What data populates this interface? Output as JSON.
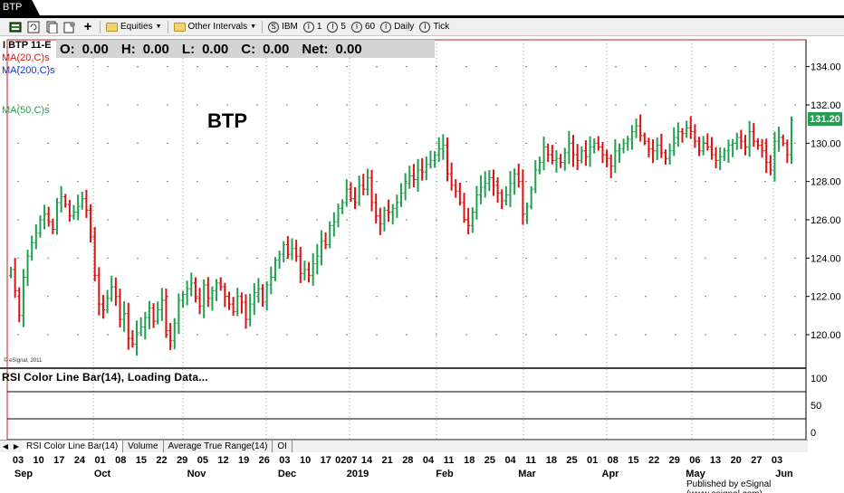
{
  "window": {
    "title": "BTP"
  },
  "toolbar": {
    "items": [
      {
        "kind": "icon",
        "name": "layout-icon"
      },
      {
        "kind": "icon",
        "name": "refresh-icon"
      },
      {
        "kind": "icon",
        "name": "page-icon"
      },
      {
        "kind": "icon",
        "name": "settings-page-icon"
      },
      {
        "kind": "icon",
        "name": "plus-icon"
      },
      {
        "kind": "folder",
        "label": "Equities",
        "dropdown": true
      },
      {
        "kind": "folder",
        "label": "Other Intervals",
        "dropdown": true
      },
      {
        "kind": "circle",
        "glyph": "S",
        "label": "IBM"
      },
      {
        "kind": "circle",
        "glyph": "I",
        "label": "1"
      },
      {
        "kind": "circle",
        "glyph": "I",
        "label": "5"
      },
      {
        "kind": "circle",
        "glyph": "I",
        "label": "60"
      },
      {
        "kind": "circle",
        "glyph": "I",
        "label": "Daily"
      },
      {
        "kind": "circle",
        "glyph": "I",
        "label": "Tick"
      }
    ]
  },
  "chart": {
    "symbol_label": "I BTP 11-E",
    "ohlc": {
      "o_label": "O:",
      "o": "0.00",
      "h_label": "H:",
      "h": "0.00",
      "l_label": "L:",
      "l": "0.00",
      "c_label": "C:",
      "c": "0.00",
      "net_label": "Net:",
      "net": "0.00"
    },
    "studies": [
      {
        "label": "MA(20,C)s",
        "color": "#e01010"
      },
      {
        "label": "MA(200,C)s",
        "color": "#1030e0"
      },
      {
        "label": "MA(50,C)s",
        "color": "#20a050"
      }
    ],
    "title": "BTP",
    "watermark": "© eSignal, 2011",
    "last_price": "131.20",
    "rsi_label": "RSI Color Line Bar(14), Loading Data..."
  },
  "chart_data": {
    "type": "ohlc-bar",
    "title": "BTP",
    "y_ticks": [
      "134.00",
      "132.00",
      "130.00",
      "128.00",
      "126.00",
      "124.00",
      "122.00",
      "120.00"
    ],
    "ylim": [
      118.3,
      135.4
    ],
    "rsi_ticks": [
      "100",
      "50",
      "0"
    ],
    "x_day_ticks": [
      "03",
      "10",
      "17",
      "24",
      "01",
      "08",
      "15",
      "22",
      "29",
      "05",
      "12",
      "19",
      "26",
      "03",
      "10",
      "17",
      "0207",
      "14",
      "21",
      "28",
      "04",
      "11",
      "18",
      "25",
      "04",
      "11",
      "18",
      "25",
      "01",
      "08",
      "15",
      "22",
      "29",
      "06",
      "13",
      "20",
      "27",
      "03"
    ],
    "x_month_labels": [
      "Sep",
      "Oct",
      "Nov",
      "Dec",
      "2019",
      "Feb",
      "Mar",
      "Apr",
      "May",
      "Jun"
    ],
    "up_color": "#20a050",
    "down_color": "#e01010",
    "closes": [
      123.4,
      122.3,
      121.0,
      123.0,
      124.1,
      124.8,
      125.3,
      126.0,
      126.3,
      125.9,
      125.5,
      126.9,
      127.2,
      126.8,
      126.2,
      126.4,
      126.7,
      127.1,
      126.5,
      125.1,
      123.1,
      121.6,
      121.3,
      121.9,
      122.5,
      122.0,
      120.8,
      121.1,
      119.8,
      119.5,
      120.1,
      120.4,
      120.9,
      121.4,
      120.7,
      121.3,
      121.8,
      120.2,
      119.7,
      120.6,
      121.8,
      122.1,
      122.4,
      122.7,
      121.9,
      121.5,
      122.6,
      121.9,
      122.3,
      122.7,
      122.5,
      122.0,
      121.6,
      121.2,
      122.0,
      121.7,
      120.8,
      121.6,
      122.2,
      122.4,
      121.7,
      122.6,
      123.0,
      123.9,
      124.2,
      124.7,
      124.2,
      124.5,
      124.1,
      123.2,
      123.4,
      123.1,
      123.7,
      124.1,
      124.9,
      124.7,
      125.7,
      125.9,
      126.6,
      126.9,
      127.6,
      127.1,
      126.9,
      127.8,
      127.6,
      128.2,
      126.9,
      126.2,
      125.8,
      126.5,
      126.4,
      126.6,
      126.9,
      127.4,
      127.9,
      128.3,
      128.1,
      128.6,
      128.5,
      128.9,
      129.1,
      129.4,
      129.7,
      129.9,
      128.4,
      127.8,
      127.5,
      126.9,
      126.0,
      125.7,
      126.4,
      127.3,
      127.7,
      127.9,
      128.2,
      127.8,
      127.4,
      127.0,
      127.3,
      127.9,
      128.4,
      128.0,
      126.3,
      126.7,
      127.6,
      128.6,
      129.0,
      129.8,
      129.4,
      129.1,
      129.2,
      129.0,
      129.5,
      130.0,
      129.4,
      129.1,
      129.6,
      129.3,
      129.8,
      130.0,
      129.8,
      129.4,
      129.2,
      128.8,
      129.6,
      129.7,
      130.0,
      130.2,
      130.6,
      130.9,
      130.4,
      130.1,
      129.7,
      129.6,
      129.9,
      129.5,
      129.2,
      129.6,
      130.3,
      130.6,
      130.5,
      130.8,
      130.6,
      130.1,
      129.6,
      130.0,
      129.8,
      129.4,
      129.1,
      129.3,
      129.6,
      129.9,
      130.0,
      130.3,
      130.1,
      129.8,
      130.6,
      130.1,
      129.9,
      129.6,
      129.0,
      128.6,
      130.1,
      130.3,
      130.0,
      129.4,
      131.2
    ]
  },
  "tabs": {
    "items": [
      "RSI Color Line Bar(14)",
      "Volume",
      "Average True Range(14)",
      "OI"
    ]
  },
  "footer": {
    "text": "Published by eSignal (www.esignal.com)"
  }
}
